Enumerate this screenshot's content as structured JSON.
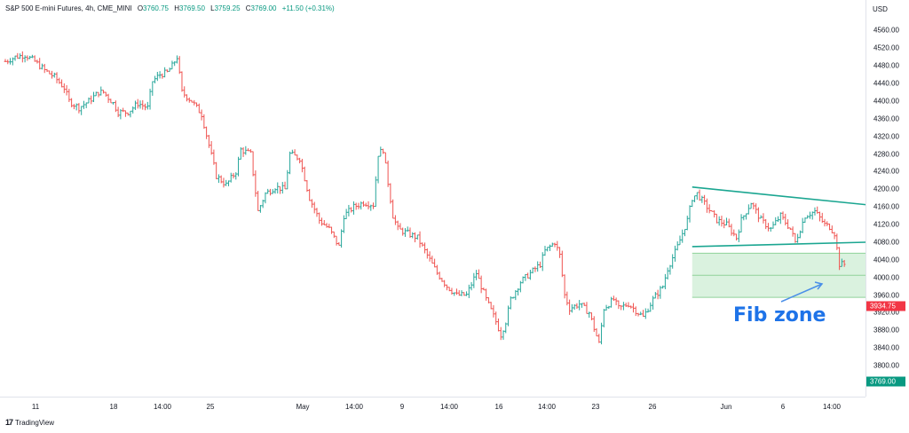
{
  "header": {
    "symbol": "S&P 500 E-mini Futures, 4h, CME_MINI",
    "open_label": "O",
    "open": "3760.75",
    "high_label": "H",
    "high": "3769.50",
    "low_label": "L",
    "low": "3759.25",
    "close_label": "C",
    "close": "3769.00",
    "change": "+11.50 (+0.31%)"
  },
  "currency": "USD",
  "price_badges": {
    "red": "3934.75",
    "green": "3769.00"
  },
  "branding": {
    "logo": "17",
    "name": "TradingView"
  },
  "annotation": {
    "text": "Fib zone"
  },
  "colors": {
    "up": "#26a69a",
    "down": "#ef5350",
    "trendline": "#1ba691",
    "fib_fill": "#d4f0d9",
    "fib_line": "#8fd29a",
    "arrow": "#4a8fe8",
    "annotation": "#1e73e8"
  },
  "chart_data": {
    "type": "candlestick",
    "title": "S&P 500 E-mini Futures, 4h, CME_MINI",
    "ylim": [
      3770,
      4575
    ],
    "y_ticks": [
      "4560.00",
      "4520.00",
      "4480.00",
      "4440.00",
      "4400.00",
      "4360.00",
      "4320.00",
      "4280.00",
      "4240.00",
      "4200.00",
      "4160.00",
      "4120.00",
      "4080.00",
      "4040.00",
      "4000.00",
      "3960.00",
      "3920.00",
      "3880.00",
      "3840.00",
      "3800.00"
    ],
    "x_ticks": [
      "11",
      "18",
      "14:00",
      "25",
      "May",
      "14:00",
      "9",
      "14:00",
      "16",
      "14:00",
      "23",
      "26",
      "Jun",
      "6",
      "14:00"
    ],
    "grid": false,
    "price_path_closes": [
      [
        0,
        4490
      ],
      [
        4,
        4500
      ],
      [
        8,
        4505
      ],
      [
        12,
        4490
      ],
      [
        16,
        4470
      ],
      [
        20,
        4455
      ],
      [
        24,
        4430
      ],
      [
        26,
        4400
      ],
      [
        30,
        4385
      ],
      [
        34,
        4400
      ],
      [
        38,
        4420
      ],
      [
        40,
        4420
      ],
      [
        44,
        4395
      ],
      [
        46,
        4375
      ],
      [
        50,
        4375
      ],
      [
        54,
        4395
      ],
      [
        58,
        4385
      ],
      [
        60,
        4445
      ],
      [
        63,
        4460
      ],
      [
        66,
        4465
      ],
      [
        68,
        4480
      ],
      [
        70,
        4500
      ],
      [
        72,
        4420
      ],
      [
        76,
        4400
      ],
      [
        80,
        4370
      ],
      [
        86,
        4230
      ],
      [
        90,
        4210
      ],
      [
        94,
        4240
      ],
      [
        96,
        4290
      ],
      [
        100,
        4280
      ],
      [
        103,
        4150
      ],
      [
        106,
        4190
      ],
      [
        110,
        4205
      ],
      [
        114,
        4200
      ],
      [
        116,
        4280
      ],
      [
        120,
        4270
      ],
      [
        124,
        4180
      ],
      [
        128,
        4130
      ],
      [
        132,
        4110
      ],
      [
        136,
        4070
      ],
      [
        138,
        4140
      ],
      [
        142,
        4160
      ],
      [
        146,
        4170
      ],
      [
        150,
        4165
      ],
      [
        152,
        4280
      ],
      [
        154,
        4290
      ],
      [
        158,
        4140
      ],
      [
        160,
        4110
      ],
      [
        164,
        4100
      ],
      [
        168,
        4090
      ],
      [
        172,
        4050
      ],
      [
        176,
        4010
      ],
      [
        180,
        3980
      ],
      [
        184,
        3960
      ],
      [
        188,
        3960
      ],
      [
        192,
        4010
      ],
      [
        196,
        3950
      ],
      [
        200,
        3900
      ],
      [
        202,
        3870
      ],
      [
        204,
        3900
      ],
      [
        206,
        3950
      ],
      [
        210,
        3990
      ],
      [
        214,
        4010
      ],
      [
        218,
        4030
      ],
      [
        220,
        4060
      ],
      [
        224,
        4080
      ],
      [
        226,
        4050
      ],
      [
        228,
        3960
      ],
      [
        230,
        3930
      ],
      [
        234,
        3940
      ],
      [
        238,
        3920
      ],
      [
        242,
        3850
      ],
      [
        244,
        3930
      ],
      [
        248,
        3950
      ],
      [
        250,
        3930
      ],
      [
        254,
        3940
      ],
      [
        256,
        3930
      ],
      [
        260,
        3910
      ],
      [
        264,
        3950
      ],
      [
        268,
        3980
      ],
      [
        270,
        4020
      ],
      [
        274,
        4070
      ],
      [
        278,
        4130
      ],
      [
        280,
        4180
      ],
      [
        282,
        4190
      ],
      [
        286,
        4160
      ],
      [
        290,
        4130
      ],
      [
        294,
        4120
      ],
      [
        298,
        4090
      ],
      [
        300,
        4130
      ],
      [
        304,
        4170
      ],
      [
        308,
        4130
      ],
      [
        312,
        4110
      ],
      [
        316,
        4140
      ],
      [
        320,
        4110
      ],
      [
        322,
        4080
      ],
      [
        326,
        4140
      ],
      [
        330,
        4150
      ],
      [
        334,
        4120
      ],
      [
        336,
        4115
      ],
      [
        338,
        4100
      ],
      [
        340,
        4030
      ],
      [
        342,
        4030
      ]
    ],
    "trendlines": [
      {
        "name": "upper",
        "from": [
          280,
          4205
        ],
        "to": [
          351,
          4165
        ]
      },
      {
        "name": "lower",
        "from": [
          280,
          4070
        ],
        "to": [
          351,
          4080
        ]
      }
    ],
    "fib_zone": {
      "top": 4055,
      "mid": 4005,
      "bottom": 3955,
      "x_start": 280,
      "x_end": 351
    },
    "last_price": 3769.0,
    "marked_price": 3934.75
  }
}
